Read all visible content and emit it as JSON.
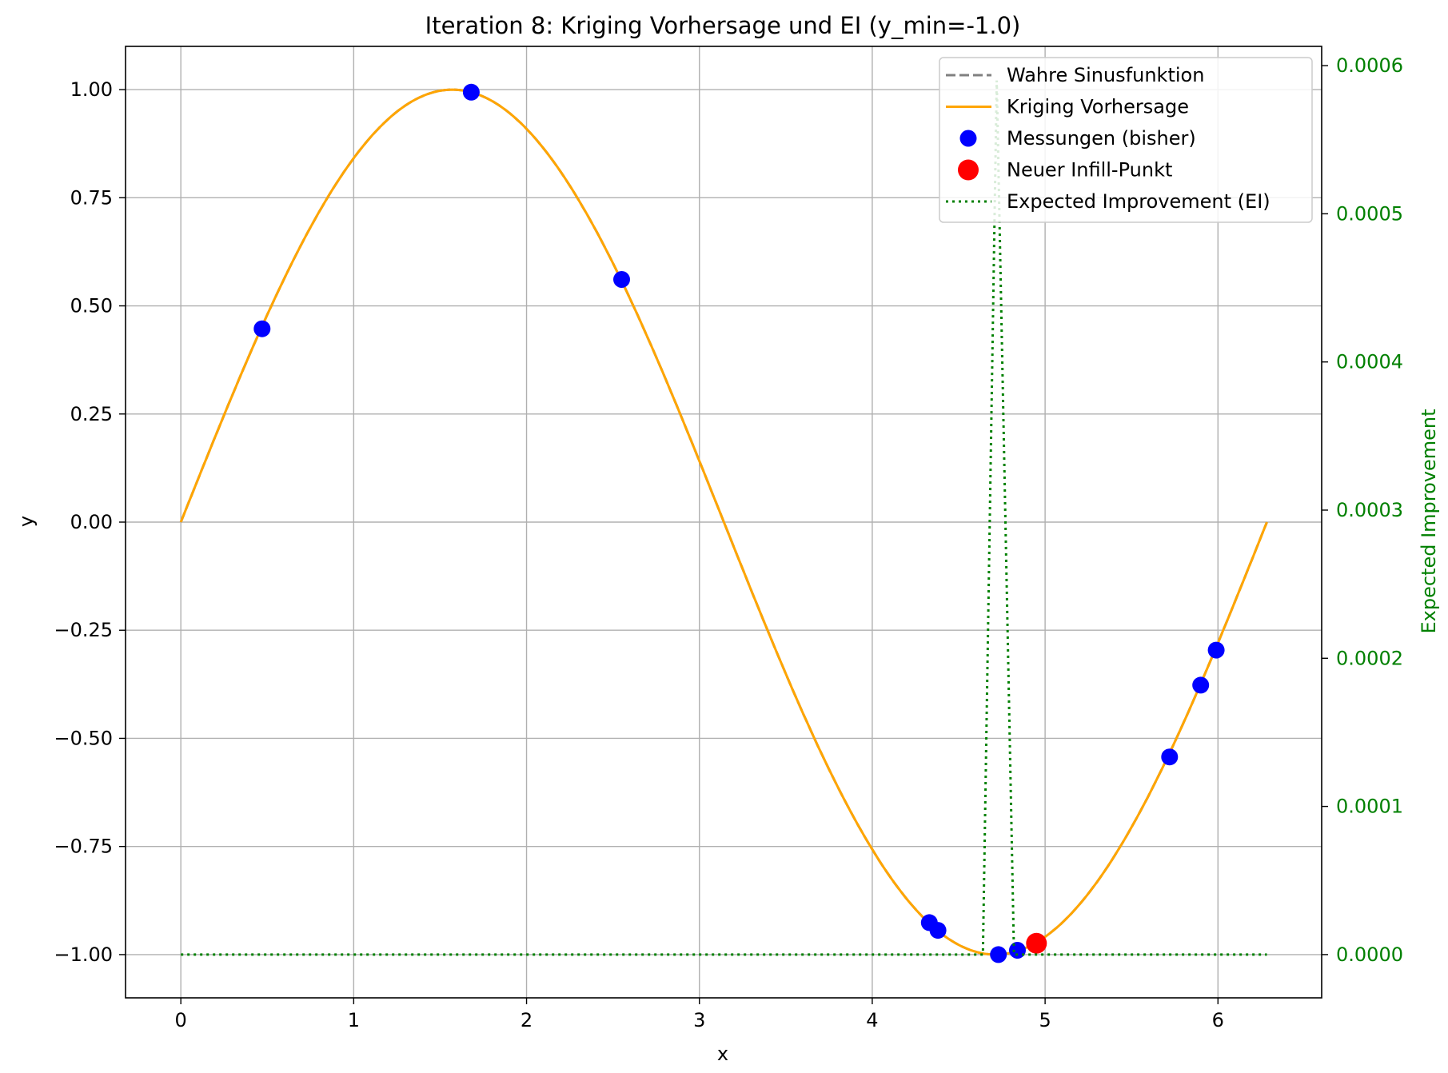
{
  "chart_data": {
    "type": "line",
    "title": "Iteration 8: Kriging Vorhersage und EI (y_min=-1.0)",
    "xlabel": "x",
    "ylabel": "y",
    "y2label": "Expected Improvement",
    "xlim": [
      -0.32,
      6.6
    ],
    "ylim": [
      -1.1,
      1.1
    ],
    "y2lim": [
      -2.92e-05,
      0.000613
    ],
    "log_scale": false,
    "grid": true,
    "legend_position": "upper right",
    "x_ticks": [
      0,
      1,
      2,
      3,
      4,
      5,
      6
    ],
    "x_tick_labels": [
      "0",
      "1",
      "2",
      "3",
      "4",
      "5",
      "6"
    ],
    "y_ticks": [
      1.0,
      0.75,
      0.5,
      0.25,
      0.0,
      -0.25,
      -0.5,
      -0.75,
      -1.0
    ],
    "y_tick_labels": [
      "1.00",
      "0.75",
      "0.50",
      "0.25",
      "0.00",
      "−0.25",
      "−0.50",
      "−0.75",
      "−1.00"
    ],
    "y2_ticks": [
      0.0,
      0.0001,
      0.0002,
      0.0003,
      0.0004,
      0.0005,
      0.0006
    ],
    "y2_tick_labels": [
      "0.0000",
      "0.0001",
      "0.0002",
      "0.0003",
      "0.0004",
      "0.0005",
      "0.0006"
    ],
    "colors": {
      "true_function": "#808080",
      "kriging": "#ffa500",
      "samples": "#0000ff",
      "infill": "#ff0000",
      "ei": "#008000",
      "grid": "#b0b0b0"
    },
    "series": [
      {
        "name": "Wahre Sinusfunktion",
        "kind": "line",
        "style": "dashed",
        "axis": "left",
        "function": "sin",
        "x_range": [
          0,
          6.283
        ]
      },
      {
        "name": "Kriging Vorhersage",
        "kind": "line",
        "style": "solid",
        "axis": "left",
        "function": "sin",
        "x_range": [
          0,
          6.283
        ]
      },
      {
        "name": "Messungen (bisher)",
        "kind": "scatter",
        "axis": "left",
        "points": [
          {
            "x": 0.47,
            "y": 0.447
          },
          {
            "x": 1.68,
            "y": 0.994
          },
          {
            "x": 2.55,
            "y": 0.561
          },
          {
            "x": 4.33,
            "y": -0.926
          },
          {
            "x": 4.38,
            "y": -0.944
          },
          {
            "x": 4.73,
            "y": -1.0
          },
          {
            "x": 4.84,
            "y": -0.99
          },
          {
            "x": 5.72,
            "y": -0.543
          },
          {
            "x": 5.9,
            "y": -0.377
          },
          {
            "x": 5.99,
            "y": -0.296
          }
        ]
      },
      {
        "name": "Neuer Infill-Punkt",
        "kind": "scatter",
        "axis": "left",
        "points": [
          {
            "x": 4.95,
            "y": -0.974
          }
        ]
      },
      {
        "name": "Expected Improvement (EI)",
        "kind": "line",
        "style": "dotted",
        "axis": "right",
        "points": [
          {
            "x": 0.0,
            "y": 0.0
          },
          {
            "x": 4.64,
            "y": 0.0
          },
          {
            "x": 4.72,
            "y": 0.00059
          },
          {
            "x": 4.82,
            "y": 0.0
          },
          {
            "x": 6.283,
            "y": 0.0
          }
        ]
      }
    ]
  }
}
